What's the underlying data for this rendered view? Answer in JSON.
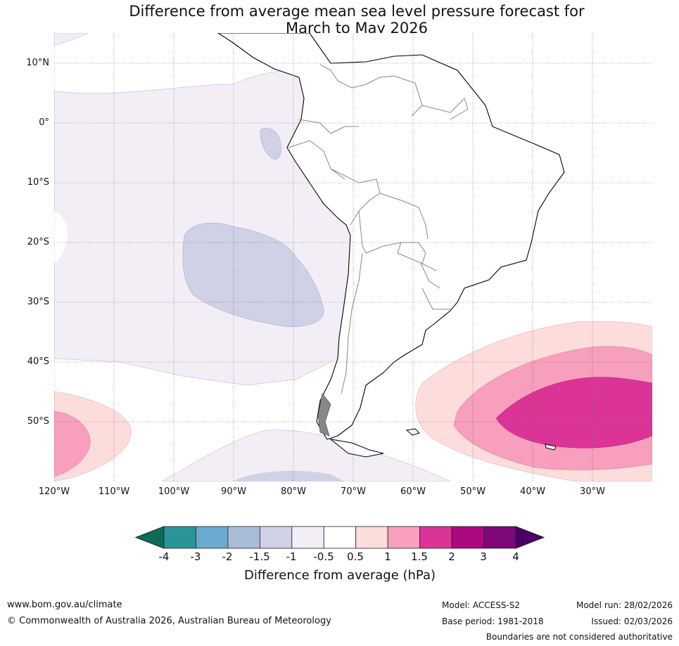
{
  "title_line1": "Difference from average mean sea level pressure forecast for",
  "title_line2": "March to May 2026",
  "latitude_labels": [
    "10°N",
    "0°",
    "10°S",
    "20°S",
    "30°S",
    "40°S",
    "50°S"
  ],
  "longitude_labels": [
    "120°W",
    "110°W",
    "100°W",
    "90°W",
    "80°W",
    "70°W",
    "60°W",
    "50°W",
    "40°W",
    "30°W"
  ],
  "legend": {
    "title": "Difference from average (hPa)",
    "ticks": [
      "-4",
      "-3",
      "-2",
      "-1.5",
      "-1",
      "-0.5",
      "0.5",
      "1",
      "1.5",
      "2",
      "3",
      "4"
    ],
    "colors": [
      "#0e6b5a",
      "#2a9599",
      "#6aaad0",
      "#a9bcd8",
      "#d0d0e6",
      "#f3eef6",
      "#ffffff",
      "#fddcdc",
      "#f79fbc",
      "#dc3496",
      "#ad0880",
      "#7e077a",
      "#4a0067"
    ]
  },
  "footer": {
    "website": "www.bom.gov.au/climate",
    "copyright": "© Commonwealth of Australia 2026, Australian Bureau of Meteorology",
    "model": "Model: ACCESS-S2",
    "base_period": "Base period: 1981-2018",
    "model_run": "Model run: 28/02/2026",
    "issued": "Issued: 02/03/2026",
    "disclaimer": "Boundaries are not considered authoritative"
  }
}
